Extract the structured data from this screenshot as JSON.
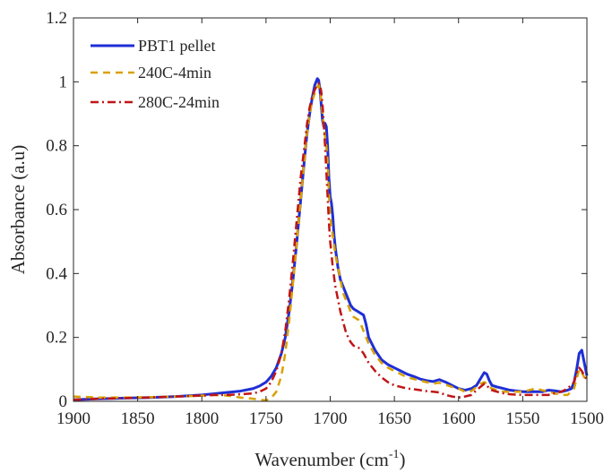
{
  "chart_data": {
    "type": "line",
    "xlabel": "Wavenumber (cm",
    "xlabel_sup": "-1",
    "xlabel_suffix": ")",
    "ylabel": "Absorbance (a.u)",
    "xlim": [
      1900,
      1500
    ],
    "x_reversed": true,
    "ylim": [
      0,
      1.2
    ],
    "x_ticks": [
      1900,
      1850,
      1800,
      1750,
      1700,
      1650,
      1600,
      1550,
      1500
    ],
    "y_ticks": [
      0,
      0.2,
      0.4,
      0.6,
      0.8,
      1,
      1.2
    ],
    "y_tick_labels": [
      "0",
      "0.2",
      "0.4",
      "0.6",
      "0.8",
      "1",
      "1.2"
    ],
    "grid": false,
    "legend_position": "top-left",
    "series": [
      {
        "name": "PBT1 pellet",
        "color": "#1f2fd6",
        "dash": "solid",
        "x": [
          1900,
          1880,
          1860,
          1840,
          1820,
          1800,
          1790,
          1780,
          1770,
          1760,
          1755,
          1750,
          1746,
          1742,
          1738,
          1735,
          1732,
          1729,
          1726,
          1723,
          1720,
          1718,
          1716,
          1714,
          1712,
          1710,
          1709,
          1708,
          1707,
          1706,
          1705,
          1704,
          1703,
          1702,
          1701,
          1700,
          1699,
          1698,
          1697,
          1696,
          1695,
          1694,
          1692,
          1690,
          1688,
          1686,
          1684,
          1682,
          1680,
          1678,
          1676,
          1674,
          1672,
          1670,
          1665,
          1660,
          1655,
          1650,
          1645,
          1640,
          1635,
          1630,
          1625,
          1620,
          1615,
          1610,
          1605,
          1600,
          1595,
          1590,
          1586,
          1583,
          1580,
          1578,
          1576,
          1574,
          1570,
          1565,
          1560,
          1550,
          1540,
          1535,
          1530,
          1525,
          1520,
          1515,
          1512,
          1510,
          1508,
          1506,
          1504,
          1502,
          1500
        ],
        "y": [
          0.005,
          0.008,
          0.01,
          0.012,
          0.015,
          0.02,
          0.024,
          0.028,
          0.032,
          0.04,
          0.048,
          0.06,
          0.078,
          0.105,
          0.15,
          0.2,
          0.28,
          0.38,
          0.5,
          0.63,
          0.76,
          0.84,
          0.9,
          0.95,
          0.99,
          1.01,
          1.005,
          0.975,
          0.93,
          0.88,
          0.86,
          0.87,
          0.86,
          0.8,
          0.7,
          0.64,
          0.62,
          0.58,
          0.52,
          0.48,
          0.45,
          0.42,
          0.38,
          0.36,
          0.34,
          0.32,
          0.3,
          0.29,
          0.285,
          0.28,
          0.275,
          0.27,
          0.24,
          0.2,
          0.16,
          0.13,
          0.115,
          0.105,
          0.095,
          0.085,
          0.078,
          0.07,
          0.065,
          0.062,
          0.068,
          0.06,
          0.05,
          0.04,
          0.035,
          0.04,
          0.05,
          0.07,
          0.09,
          0.085,
          0.065,
          0.05,
          0.045,
          0.04,
          0.035,
          0.03,
          0.03,
          0.03,
          0.035,
          0.033,
          0.03,
          0.035,
          0.04,
          0.06,
          0.1,
          0.15,
          0.16,
          0.12,
          0.08
        ]
      },
      {
        "name": "240C-4min",
        "color": "#d9a000",
        "dash": "dashed",
        "x": [
          1900,
          1880,
          1860,
          1840,
          1820,
          1800,
          1790,
          1780,
          1770,
          1760,
          1755,
          1750,
          1746,
          1742,
          1738,
          1735,
          1732,
          1729,
          1726,
          1723,
          1720,
          1718,
          1716,
          1714,
          1712,
          1710,
          1709,
          1708,
          1707,
          1706,
          1705,
          1704,
          1703,
          1702,
          1701,
          1700,
          1698,
          1696,
          1694,
          1692,
          1690,
          1688,
          1686,
          1684,
          1682,
          1680,
          1678,
          1676,
          1674,
          1672,
          1670,
          1665,
          1660,
          1655,
          1650,
          1645,
          1640,
          1635,
          1630,
          1625,
          1620,
          1615,
          1610,
          1605,
          1600,
          1595,
          1590,
          1586,
          1583,
          1580,
          1578,
          1576,
          1574,
          1570,
          1565,
          1560,
          1550,
          1545,
          1540,
          1530,
          1525,
          1520,
          1515,
          1510,
          1508,
          1506,
          1504,
          1502,
          1500
        ],
        "y": [
          0.015,
          0.012,
          0.012,
          0.013,
          0.015,
          0.018,
          0.02,
          0.018,
          0.012,
          0.008,
          0.005,
          0.003,
          0.01,
          0.03,
          0.08,
          0.15,
          0.25,
          0.37,
          0.5,
          0.63,
          0.76,
          0.84,
          0.9,
          0.94,
          0.965,
          0.985,
          0.99,
          0.975,
          0.94,
          0.9,
          0.86,
          0.83,
          0.8,
          0.75,
          0.65,
          0.58,
          0.52,
          0.46,
          0.42,
          0.38,
          0.34,
          0.32,
          0.3,
          0.28,
          0.265,
          0.26,
          0.255,
          0.24,
          0.22,
          0.2,
          0.18,
          0.145,
          0.12,
          0.105,
          0.095,
          0.085,
          0.075,
          0.07,
          0.065,
          0.06,
          0.055,
          0.058,
          0.052,
          0.045,
          0.04,
          0.03,
          0.032,
          0.045,
          0.055,
          0.06,
          0.055,
          0.045,
          0.04,
          0.035,
          0.03,
          0.03,
          0.03,
          0.035,
          0.04,
          0.03,
          0.025,
          0.02,
          0.02,
          0.04,
          0.07,
          0.1,
          0.09,
          0.075,
          0.07
        ]
      },
      {
        "name": "280C-24min",
        "color": "#c01515",
        "dash": "dashdot",
        "x": [
          1900,
          1880,
          1860,
          1840,
          1820,
          1800,
          1790,
          1780,
          1770,
          1760,
          1755,
          1750,
          1746,
          1742,
          1738,
          1735,
          1732,
          1729,
          1726,
          1723,
          1720,
          1718,
          1716,
          1714,
          1712,
          1710,
          1709,
          1708,
          1707,
          1706,
          1705,
          1704,
          1703,
          1702,
          1701,
          1700,
          1698,
          1696,
          1694,
          1692,
          1690,
          1688,
          1686,
          1684,
          1682,
          1680,
          1678,
          1676,
          1674,
          1672,
          1670,
          1665,
          1660,
          1655,
          1650,
          1645,
          1640,
          1635,
          1630,
          1625,
          1620,
          1615,
          1610,
          1605,
          1600,
          1595,
          1590,
          1586,
          1583,
          1580,
          1578,
          1576,
          1574,
          1570,
          1565,
          1560,
          1550,
          1540,
          1530,
          1525,
          1520,
          1515,
          1510,
          1508,
          1506,
          1504,
          1502,
          1500
        ],
        "y": [
          0.005,
          0.008,
          0.01,
          0.012,
          0.015,
          0.018,
          0.02,
          0.02,
          0.022,
          0.025,
          0.03,
          0.04,
          0.06,
          0.095,
          0.15,
          0.22,
          0.32,
          0.44,
          0.57,
          0.7,
          0.8,
          0.87,
          0.92,
          0.955,
          0.975,
          0.99,
          0.995,
          0.99,
          0.97,
          0.93,
          0.87,
          0.8,
          0.72,
          0.64,
          0.56,
          0.5,
          0.42,
          0.36,
          0.32,
          0.28,
          0.25,
          0.22,
          0.2,
          0.185,
          0.175,
          0.17,
          0.168,
          0.16,
          0.15,
          0.135,
          0.12,
          0.095,
          0.075,
          0.06,
          0.05,
          0.045,
          0.04,
          0.038,
          0.035,
          0.032,
          0.03,
          0.028,
          0.02,
          0.015,
          0.012,
          0.015,
          0.02,
          0.035,
          0.045,
          0.055,
          0.05,
          0.04,
          0.035,
          0.03,
          0.025,
          0.022,
          0.02,
          0.02,
          0.02,
          0.025,
          0.03,
          0.04,
          0.06,
          0.09,
          0.105,
          0.095,
          0.08,
          0.07
        ]
      }
    ]
  }
}
